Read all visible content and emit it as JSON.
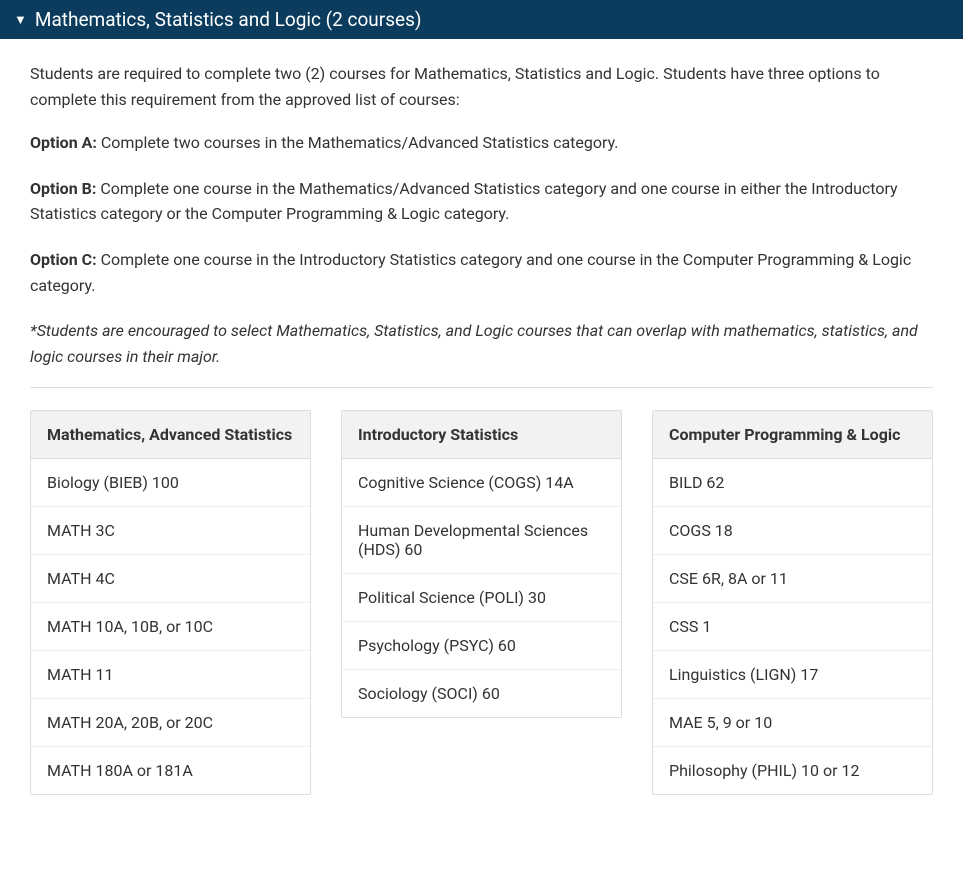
{
  "header": {
    "title": "Mathematics, Statistics and Logic (2 courses)",
    "background_color": "#0b3c5d",
    "text_color": "#ffffff"
  },
  "intro": "Students are required to complete two (2) courses for Mathematics, Statistics and Logic. Students have three options to complete this requirement from the approved list of courses:",
  "options": [
    {
      "label": "Option A:",
      "text": " Complete two courses in the Mathematics/Advanced Statistics category."
    },
    {
      "label": "Option B:",
      "text": " Complete one course in the Mathematics/Advanced Statistics category and one course in either the Introductory Statistics category or the Computer Programming & Logic category."
    },
    {
      "label": "Option C:",
      "text": " Complete one course in the Introductory Statistics category and one course in the Computer Programming & Logic category."
    }
  ],
  "note": "*Students are encouraged to select Mathematics, Statistics, and Logic courses that can overlap with mathematics, statistics, and logic courses in their major.",
  "tables": [
    {
      "header": "Mathematics, Advanced Statistics",
      "rows": [
        "Biology (BIEB) 100",
        "MATH 3C",
        "MATH 4C",
        "MATH 10A, 10B, or 10C",
        "MATH 11",
        "MATH 20A, 20B, or 20C",
        "MATH 180A or 181A"
      ]
    },
    {
      "header": "Introductory Statistics",
      "rows": [
        "Cognitive Science (COGS) 14A",
        "Human Developmental Sciences (HDS) 60",
        "Political Science (POLI) 30",
        "Psychology (PSYC) 60",
        "Sociology (SOCI) 60"
      ]
    },
    {
      "header": "Computer Programming & Logic",
      "rows": [
        "BILD 62",
        "COGS 18",
        "CSE 6R, 8A or 11",
        "CSS 1",
        "Linguistics (LIGN) 17",
        "MAE 5, 9 or 10",
        "Philosophy (PHIL) 10 or 12"
      ]
    }
  ],
  "styles": {
    "table_border_color": "#dddddd",
    "table_header_bg": "#f2f2f2",
    "text_color": "#333333",
    "body_bg": "#ffffff",
    "font_size_body": 16,
    "font_size_header": 19
  }
}
